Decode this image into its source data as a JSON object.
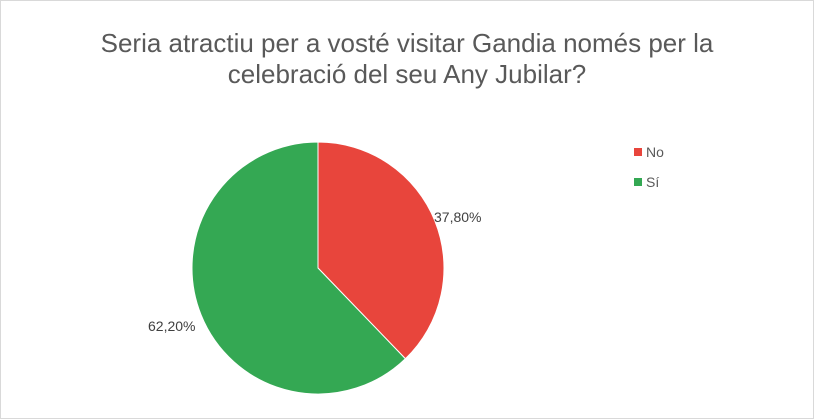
{
  "chart_data": {
    "type": "pie",
    "title_line1": "Seria atractiu per a vosté visitar Gandia només per la",
    "title_line2": "celebració del seu Any Jubilar?",
    "slices": [
      {
        "label": "No",
        "value": 37.8,
        "display": "37,80%",
        "color": "#e8453c"
      },
      {
        "label": "Sí",
        "value": 62.2,
        "display": "62,20%",
        "color": "#34a853"
      }
    ],
    "legend_position": "right"
  }
}
